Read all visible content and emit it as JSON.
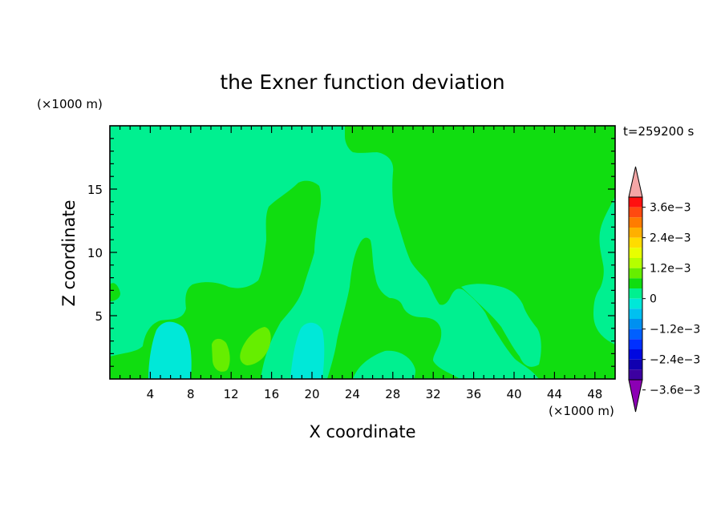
{
  "chart_data": {
    "type": "heatmap",
    "title": "the Exner function deviation",
    "xlabel": "X coordinate",
    "ylabel": "Z coordinate",
    "x_unit": "(×1000 m)",
    "z_unit": "(×1000 m)",
    "time_label": "t=259200 s",
    "xlim": [
      0,
      50
    ],
    "ylim": [
      0,
      20
    ],
    "x_ticks": [
      4,
      8,
      12,
      16,
      20,
      24,
      28,
      32,
      36,
      40,
      44,
      48
    ],
    "y_ticks": [
      5,
      10,
      15
    ],
    "colorbar": {
      "tick_labels": [
        "3.6e−3",
        "2.4e−3",
        "1.2e−3",
        "0",
        "−1.2e−3",
        "−2.4e−3",
        "−3.6e−3"
      ],
      "colors": [
        "#f4a6a6",
        "#ff1010",
        "#ff4a10",
        "#ff7c00",
        "#ffb000",
        "#ffdc00",
        "#e8ff00",
        "#b4ff00",
        "#66ee00",
        "#10dd10",
        "#00f090",
        "#00e8d8",
        "#00c0f0",
        "#0090f0",
        "#0060ff",
        "#0030ff",
        "#0008e0",
        "#1000b0",
        "#3c00a0",
        "#8c00b4"
      ]
    },
    "field_colors": {
      "level_0_to_pos": "#10dd10",
      "level_neg_small": "#00f090",
      "level_neg_mid": "#00e8d8",
      "level_pos_mid": "#66ee00",
      "level_pos_high": "#b4ff00"
    }
  }
}
